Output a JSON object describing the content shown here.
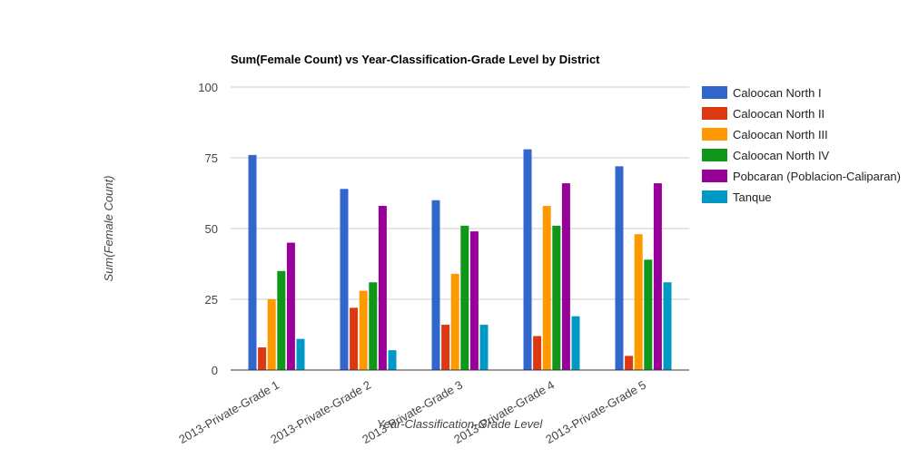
{
  "chart_data": {
    "type": "bar",
    "title": "Sum(Female Count) vs Year-Classification-Grade Level by District",
    "xlabel": "Year-Classification-Grade Level",
    "ylabel": "Sum(Female Count)",
    "ylim": [
      0,
      100
    ],
    "yticks": [
      "0",
      "25",
      "50",
      "75",
      "100"
    ],
    "grid": true,
    "legend": "right",
    "categories": [
      "2013-Private-Grade 1",
      "2013-Private-Grade 2",
      "2013-Private-Grade 3",
      "2013-Private-Grade 4",
      "2013-Private-Grade 5"
    ],
    "series": [
      {
        "name": "Caloocan North I",
        "color": "#3366cc",
        "values": [
          76,
          64,
          60,
          78,
          72
        ]
      },
      {
        "name": "Caloocan North II",
        "color": "#dc3912",
        "values": [
          8,
          22,
          16,
          12,
          5
        ]
      },
      {
        "name": "Caloocan North III",
        "color": "#ff9900",
        "values": [
          25,
          28,
          34,
          58,
          48
        ]
      },
      {
        "name": "Caloocan North IV",
        "color": "#109618",
        "values": [
          35,
          31,
          51,
          51,
          39
        ]
      },
      {
        "name": "Pobcaran (Poblacion-Caliparan)",
        "color": "#990099",
        "values": [
          45,
          58,
          49,
          66,
          66
        ]
      },
      {
        "name": "Tanque",
        "color": "#0099c6",
        "values": [
          11,
          7,
          16,
          19,
          31
        ]
      }
    ]
  }
}
